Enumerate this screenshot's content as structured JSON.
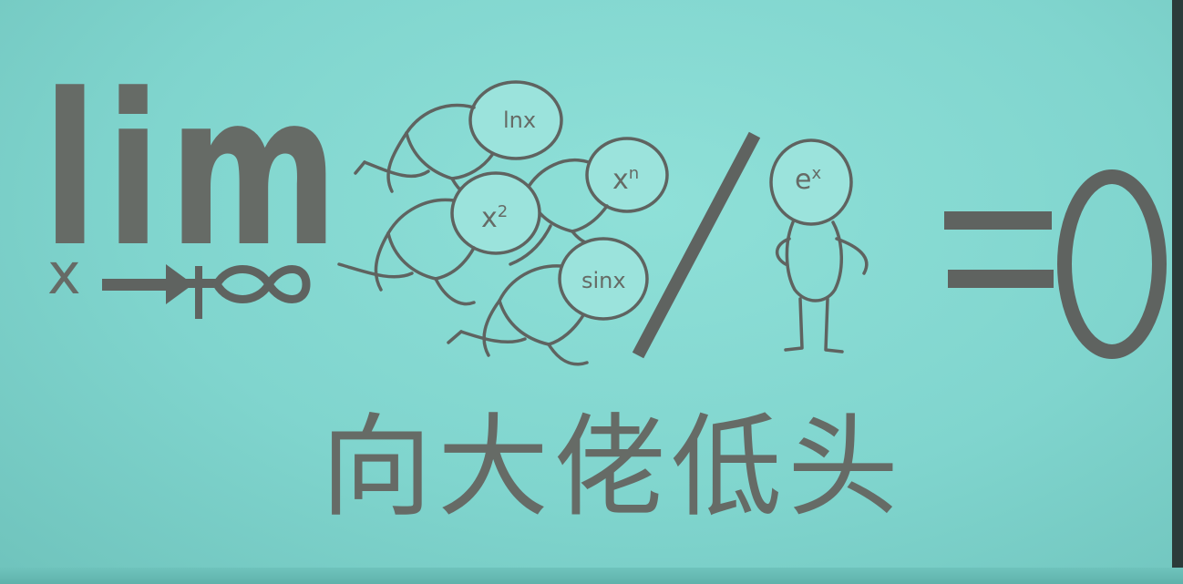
{
  "lim": {
    "operator": "lim",
    "variable": "x",
    "target": "+∞"
  },
  "crowd": [
    {
      "base": "lnx",
      "sup": ""
    },
    {
      "base": "x",
      "sup": "n"
    },
    {
      "base": "x",
      "sup": "2"
    },
    {
      "base": "sinx",
      "sup": ""
    }
  ],
  "divisor": {
    "base": "e",
    "sup": "x"
  },
  "result": "=0",
  "caption": "向大佬低头",
  "colors": {
    "background": "#80d5ce",
    "ink": "#666b66",
    "line": "#5f6360"
  }
}
